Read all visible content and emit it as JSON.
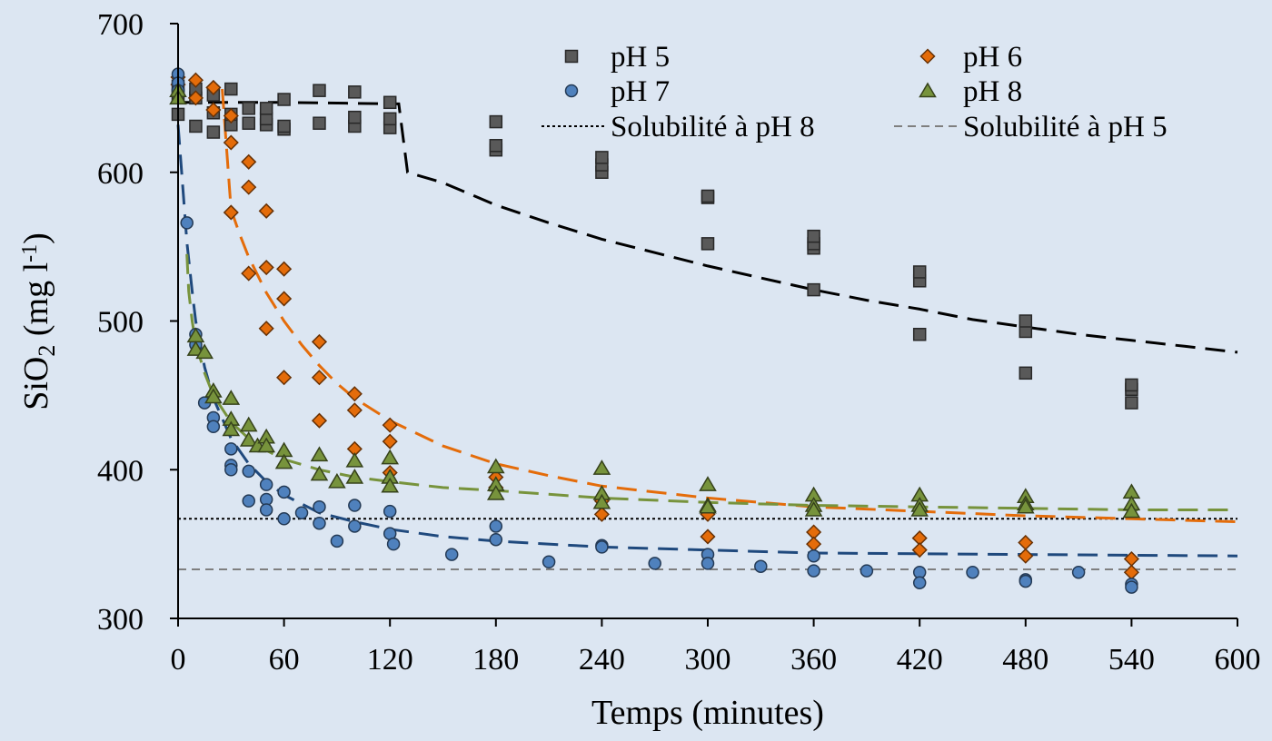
{
  "chart_data": {
    "type": "scatter",
    "xlabel": "Temps (minutes)",
    "ylabel": {
      "prefix": "SiO",
      "sub": "2",
      "suffix": " (mg l",
      "sup": "-1",
      "end": ")"
    },
    "xlim": [
      0,
      600
    ],
    "ylim": [
      300,
      700
    ],
    "xticks": [
      "0",
      "60",
      "120",
      "180",
      "240",
      "300",
      "360",
      "420",
      "480",
      "540",
      "600"
    ],
    "yticks": [
      "300",
      "400",
      "500",
      "600",
      "700"
    ],
    "grid": false,
    "legend_position": "top-right",
    "series": [
      {
        "name": "pH 5",
        "marker": "square",
        "color": "#595959",
        "points": [
          [
            0,
            639
          ],
          [
            0,
            652
          ],
          [
            0,
            658
          ],
          [
            10,
            631
          ],
          [
            10,
            650
          ],
          [
            10,
            656
          ],
          [
            20,
            627
          ],
          [
            20,
            640
          ],
          [
            20,
            652
          ],
          [
            30,
            632
          ],
          [
            30,
            639
          ],
          [
            30,
            656
          ],
          [
            40,
            633
          ],
          [
            40,
            643
          ],
          [
            50,
            632
          ],
          [
            50,
            636
          ],
          [
            50,
            643
          ],
          [
            60,
            629
          ],
          [
            60,
            631
          ],
          [
            60,
            649
          ],
          [
            80,
            633
          ],
          [
            80,
            655
          ],
          [
            100,
            631
          ],
          [
            100,
            637
          ],
          [
            100,
            654
          ],
          [
            120,
            630
          ],
          [
            120,
            636
          ],
          [
            120,
            647
          ],
          [
            180,
            615
          ],
          [
            180,
            618
          ],
          [
            180,
            634
          ],
          [
            240,
            600
          ],
          [
            240,
            605
          ],
          [
            240,
            610
          ],
          [
            300,
            552
          ],
          [
            300,
            583
          ],
          [
            300,
            584
          ],
          [
            360,
            521
          ],
          [
            360,
            549
          ],
          [
            360,
            552
          ],
          [
            360,
            557
          ],
          [
            420,
            491
          ],
          [
            420,
            527
          ],
          [
            420,
            533
          ],
          [
            480,
            465
          ],
          [
            480,
            493
          ],
          [
            480,
            500
          ],
          [
            540,
            445
          ],
          [
            540,
            454
          ],
          [
            540,
            457
          ]
        ]
      },
      {
        "name": "pH 6",
        "marker": "diamond",
        "color": "#e46c0a",
        "points": [
          [
            0,
            664
          ],
          [
            0,
            659
          ],
          [
            10,
            662
          ],
          [
            10,
            650
          ],
          [
            20,
            657
          ],
          [
            20,
            642
          ],
          [
            30,
            638
          ],
          [
            30,
            620
          ],
          [
            30,
            573
          ],
          [
            40,
            607
          ],
          [
            40,
            590
          ],
          [
            40,
            532
          ],
          [
            50,
            574
          ],
          [
            50,
            536
          ],
          [
            50,
            495
          ],
          [
            60,
            535
          ],
          [
            60,
            515
          ],
          [
            60,
            462
          ],
          [
            80,
            486
          ],
          [
            80,
            462
          ],
          [
            80,
            433
          ],
          [
            100,
            451
          ],
          [
            100,
            440
          ],
          [
            100,
            414
          ],
          [
            120,
            430
          ],
          [
            120,
            419
          ],
          [
            120,
            398
          ],
          [
            180,
            395
          ],
          [
            180,
            388
          ],
          [
            240,
            379
          ],
          [
            240,
            370
          ],
          [
            300,
            370
          ],
          [
            300,
            355
          ],
          [
            360,
            358
          ],
          [
            360,
            350
          ],
          [
            420,
            354
          ],
          [
            420,
            346
          ],
          [
            480,
            351
          ],
          [
            480,
            342
          ],
          [
            540,
            340
          ],
          [
            540,
            331
          ]
        ]
      },
      {
        "name": "pH 7",
        "marker": "circle",
        "color": "#4f81bd",
        "points": [
          [
            0,
            666
          ],
          [
            0,
            660
          ],
          [
            0,
            655
          ],
          [
            5,
            566
          ],
          [
            10,
            491
          ],
          [
            10,
            484
          ],
          [
            15,
            445
          ],
          [
            20,
            435
          ],
          [
            20,
            429
          ],
          [
            30,
            414
          ],
          [
            30,
            403
          ],
          [
            30,
            400
          ],
          [
            40,
            399
          ],
          [
            40,
            379
          ],
          [
            50,
            390
          ],
          [
            50,
            380
          ],
          [
            50,
            373
          ],
          [
            60,
            385
          ],
          [
            60,
            367
          ],
          [
            70,
            371
          ],
          [
            80,
            375
          ],
          [
            80,
            364
          ],
          [
            90,
            352
          ],
          [
            100,
            376
          ],
          [
            100,
            362
          ],
          [
            120,
            372
          ],
          [
            120,
            357
          ],
          [
            122,
            350
          ],
          [
            155,
            343
          ],
          [
            180,
            362
          ],
          [
            180,
            353
          ],
          [
            210,
            338
          ],
          [
            240,
            349
          ],
          [
            240,
            348
          ],
          [
            270,
            337
          ],
          [
            300,
            343
          ],
          [
            300,
            337
          ],
          [
            330,
            335
          ],
          [
            360,
            342
          ],
          [
            360,
            332
          ],
          [
            390,
            332
          ],
          [
            420,
            331
          ],
          [
            420,
            324
          ],
          [
            450,
            331
          ],
          [
            480,
            326
          ],
          [
            480,
            325
          ],
          [
            510,
            331
          ],
          [
            540,
            323
          ],
          [
            540,
            321
          ]
        ]
      },
      {
        "name": "pH 8",
        "marker": "triangle",
        "color": "#77933c",
        "points": [
          [
            0,
            655
          ],
          [
            0,
            650
          ],
          [
            10,
            490
          ],
          [
            10,
            481
          ],
          [
            15,
            479
          ],
          [
            20,
            453
          ],
          [
            20,
            449
          ],
          [
            30,
            448
          ],
          [
            30,
            434
          ],
          [
            30,
            427
          ],
          [
            40,
            430
          ],
          [
            40,
            420
          ],
          [
            45,
            416
          ],
          [
            50,
            422
          ],
          [
            50,
            416
          ],
          [
            60,
            413
          ],
          [
            60,
            405
          ],
          [
            80,
            410
          ],
          [
            80,
            397
          ],
          [
            90,
            392
          ],
          [
            100,
            406
          ],
          [
            100,
            395
          ],
          [
            120,
            408
          ],
          [
            120,
            395
          ],
          [
            120,
            389
          ],
          [
            180,
            402
          ],
          [
            180,
            390
          ],
          [
            180,
            384
          ],
          [
            240,
            401
          ],
          [
            240,
            384
          ],
          [
            240,
            378
          ],
          [
            300,
            390
          ],
          [
            300,
            376
          ],
          [
            300,
            375
          ],
          [
            360,
            383
          ],
          [
            360,
            376
          ],
          [
            360,
            373
          ],
          [
            420,
            383
          ],
          [
            420,
            376
          ],
          [
            420,
            373
          ],
          [
            480,
            382
          ],
          [
            480,
            377
          ],
          [
            480,
            375
          ],
          [
            540,
            385
          ],
          [
            540,
            377
          ],
          [
            540,
            372
          ]
        ]
      }
    ],
    "fits": [
      {
        "color": "#000000",
        "points": [
          [
            0,
            647
          ],
          [
            60,
            647
          ],
          [
            125,
            646
          ],
          [
            130,
            600
          ],
          [
            150,
            593
          ],
          [
            180,
            578
          ],
          [
            210,
            566
          ],
          [
            240,
            555
          ],
          [
            270,
            546
          ],
          [
            300,
            537
          ],
          [
            330,
            529
          ],
          [
            360,
            521
          ],
          [
            390,
            514
          ],
          [
            420,
            508
          ],
          [
            450,
            501
          ],
          [
            480,
            496
          ],
          [
            510,
            491
          ],
          [
            540,
            487
          ],
          [
            570,
            483
          ],
          [
            600,
            479
          ]
        ]
      },
      {
        "color": "#e46c0a",
        "points": [
          [
            25,
            656
          ],
          [
            30,
            575
          ],
          [
            35,
            558
          ],
          [
            40,
            543
          ],
          [
            50,
            519
          ],
          [
            60,
            500
          ],
          [
            70,
            484
          ],
          [
            80,
            470
          ],
          [
            90,
            458
          ],
          [
            100,
            448
          ],
          [
            120,
            433
          ],
          [
            150,
            416
          ],
          [
            180,
            404
          ],
          [
            210,
            396
          ],
          [
            240,
            389
          ],
          [
            300,
            381
          ],
          [
            360,
            375
          ],
          [
            420,
            372
          ],
          [
            480,
            369
          ],
          [
            540,
            367
          ],
          [
            600,
            365
          ]
        ]
      },
      {
        "color": "#1f497d",
        "points": [
          [
            0,
            632
          ],
          [
            3,
            585
          ],
          [
            5,
            553
          ],
          [
            8,
            520
          ],
          [
            10,
            500
          ],
          [
            15,
            469
          ],
          [
            20,
            448
          ],
          [
            30,
            421
          ],
          [
            40,
            404
          ],
          [
            50,
            392
          ],
          [
            60,
            383
          ],
          [
            80,
            371
          ],
          [
            100,
            365
          ],
          [
            120,
            360
          ],
          [
            150,
            355
          ],
          [
            180,
            352
          ],
          [
            240,
            348
          ],
          [
            300,
            346
          ],
          [
            360,
            344
          ],
          [
            420,
            343.5
          ],
          [
            480,
            343
          ],
          [
            540,
            342.5
          ],
          [
            600,
            342
          ]
        ]
      },
      {
        "color": "#77933c",
        "points": [
          [
            5,
            545
          ],
          [
            6,
            520
          ],
          [
            8,
            500
          ],
          [
            10,
            485
          ],
          [
            15,
            465
          ],
          [
            20,
            450
          ],
          [
            30,
            432
          ],
          [
            40,
            421
          ],
          [
            50,
            413
          ],
          [
            60,
            407
          ],
          [
            80,
            400
          ],
          [
            100,
            395
          ],
          [
            120,
            392
          ],
          [
            150,
            388
          ],
          [
            180,
            386
          ],
          [
            240,
            381
          ],
          [
            300,
            378
          ],
          [
            360,
            376
          ],
          [
            420,
            375
          ],
          [
            480,
            374
          ],
          [
            540,
            373
          ],
          [
            600,
            373
          ]
        ]
      }
    ],
    "reference_lines": [
      {
        "name": "Solubilité à pH 8",
        "y": 367,
        "color": "#000000",
        "style": "dotted"
      },
      {
        "name": "Solubilité à pH 5",
        "y": 333,
        "color": "#7f7f7f",
        "style": "dashed"
      }
    ]
  }
}
